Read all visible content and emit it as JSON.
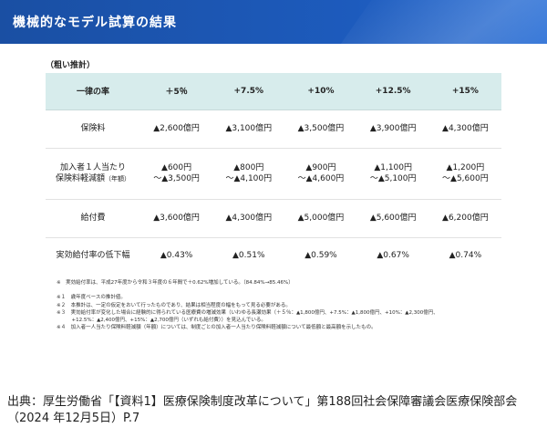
{
  "header": {
    "title": "機械的なモデル試算の結果"
  },
  "note_top": "（粗い推計）",
  "table": {
    "header_label": "一律の率",
    "rates": [
      "＋5％",
      "+7.5%",
      "+10%",
      "+12.5%",
      "+15%"
    ],
    "rows": [
      {
        "label": "保険料",
        "values": [
          "▲2,600億円",
          "▲3,100億円",
          "▲3,500億円",
          "▲3,900億円",
          "▲4,300億円"
        ]
      },
      {
        "label_line1": "加入者１人当たり",
        "label_line2": "保険料軽減額",
        "label_suffix": "（年額）",
        "values_line1": [
          "▲600円",
          "▲800円",
          "▲900円",
          "▲1,100円",
          "▲1,200円"
        ],
        "values_line2": [
          "～▲3,500円",
          "～▲4,100円",
          "～▲4,600円",
          "～▲5,100円",
          "～▲5,600円"
        ]
      },
      {
        "label": "給付費",
        "values": [
          "▲3,600億円",
          "▲4,300億円",
          "▲5,000億円",
          "▲5,600億円",
          "▲6,200億円"
        ]
      },
      {
        "label": "実効給付率の低下幅",
        "values": [
          "▲0.43%",
          "▲0.51%",
          "▲0.59%",
          "▲0.67%",
          "▲0.74%"
        ]
      }
    ]
  },
  "footnotes": {
    "main": "※　実効給付率は、平成27年度から令和３年度の６年間で＋0.62%増加している。（84.84%→85.46%）",
    "items": [
      "※１　歳年度ベースの推計値。",
      "※２　本推計は、一定の仮定をおいて行ったものであり、結果は相当程度の幅をもって見る必要がある。",
      "※３　実効給付率が変化した場合に経験的に得られている医療費の増減効果（いわゆる長瀬効果（＋５％：▲1,800億円、+7.5%：▲1,800億円、+10%：▲2,300億円、",
      "　　　+12.5%：▲2,400億円、+15%：▲2,700億円（いずれも給付費））を見込んでいる。",
      "※４　加入者一人当たり保険料軽減額（年額）については、制度ごとの加入者一人当たり保険料軽減額について最低額と最高額を示したもの。"
    ]
  },
  "source": "出典：厚生労働省「【資料1】医療保険制度改革について」第188回社会保障審議会医療保険部会（2024 年12月5日）P.7",
  "colors": {
    "header_bg": "#1d5bbd",
    "table_header_bg": "#d7ecec"
  }
}
